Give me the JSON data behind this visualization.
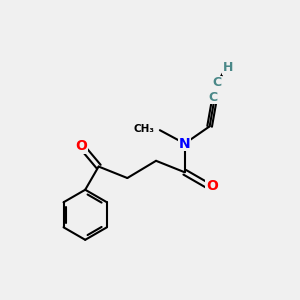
{
  "background_color": "#f0f0f0",
  "bond_color": "#000000",
  "N_color": "#0000ff",
  "O_color": "#ff0000",
  "H_color": "#4a8888",
  "C_color": "#4a8888",
  "figsize": [
    3.0,
    3.0
  ],
  "dpi": 100,
  "bond_lw": 1.5,
  "font_size_atom": 10,
  "xlim": [
    0,
    10
  ],
  "ylim": [
    0,
    10
  ]
}
